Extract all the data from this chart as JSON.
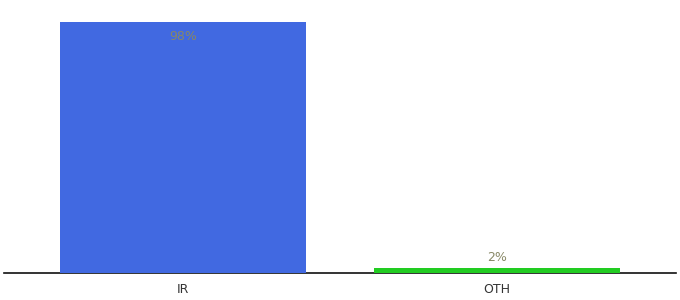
{
  "categories": [
    "IR",
    "OTH"
  ],
  "values": [
    98,
    2
  ],
  "bar_colors": [
    "#4169e1",
    "#22cc22"
  ],
  "label_colors": [
    "#888866",
    "#888866"
  ],
  "labels": [
    "98%",
    "2%"
  ],
  "background_color": "#ffffff",
  "ylim": [
    0,
    105
  ],
  "bar_width": 0.55,
  "label_fontsize": 9,
  "tick_fontsize": 9,
  "axis_line_color": "#111111",
  "x_positions": [
    0.3,
    1.0
  ]
}
